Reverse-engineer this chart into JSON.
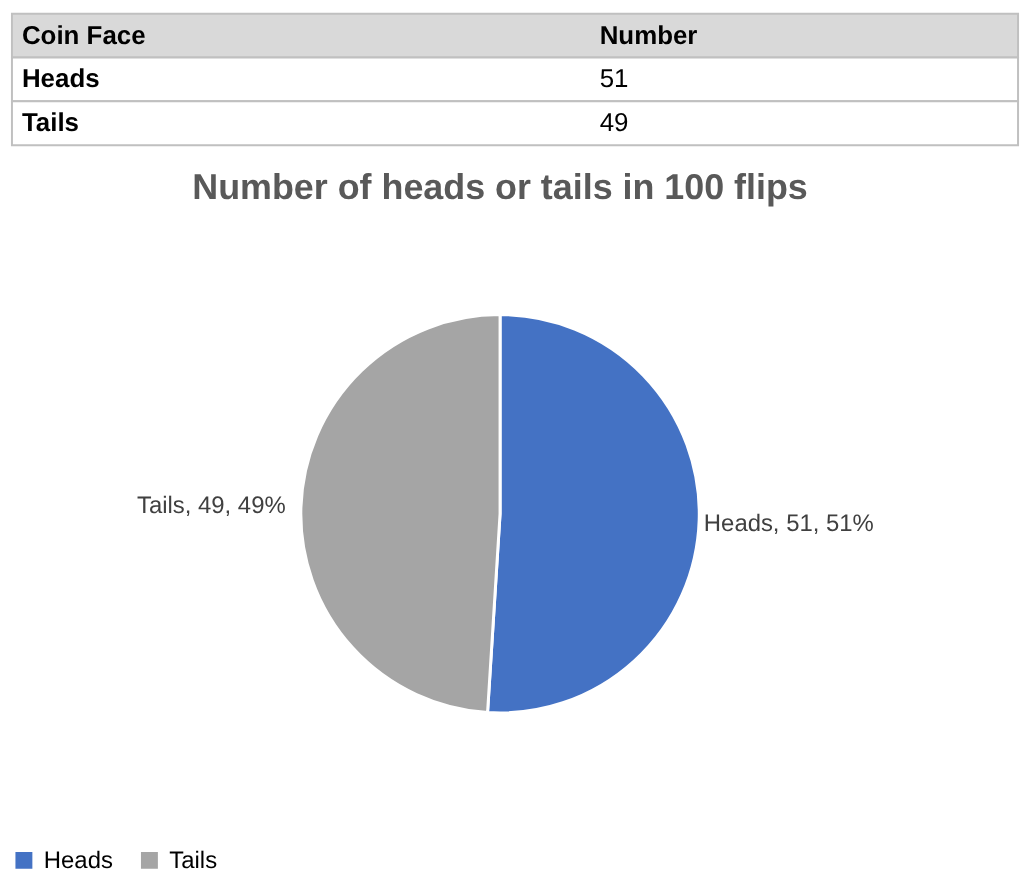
{
  "chart_data": {
    "type": "pie",
    "title": "Number of heads or tails in 100 flips",
    "categories": [
      "Heads",
      "Tails"
    ],
    "values": [
      51,
      49
    ],
    "colors": [
      "#4472c4",
      "#a5a5a5"
    ],
    "value_labels": [
      "Heads, 51, 51%",
      "Tails, 49, 49%"
    ],
    "annotations": [
      "Coin Face",
      "Number",
      "Heads",
      "51",
      "Tails",
      "49"
    ],
    "legend": "bottom"
  }
}
